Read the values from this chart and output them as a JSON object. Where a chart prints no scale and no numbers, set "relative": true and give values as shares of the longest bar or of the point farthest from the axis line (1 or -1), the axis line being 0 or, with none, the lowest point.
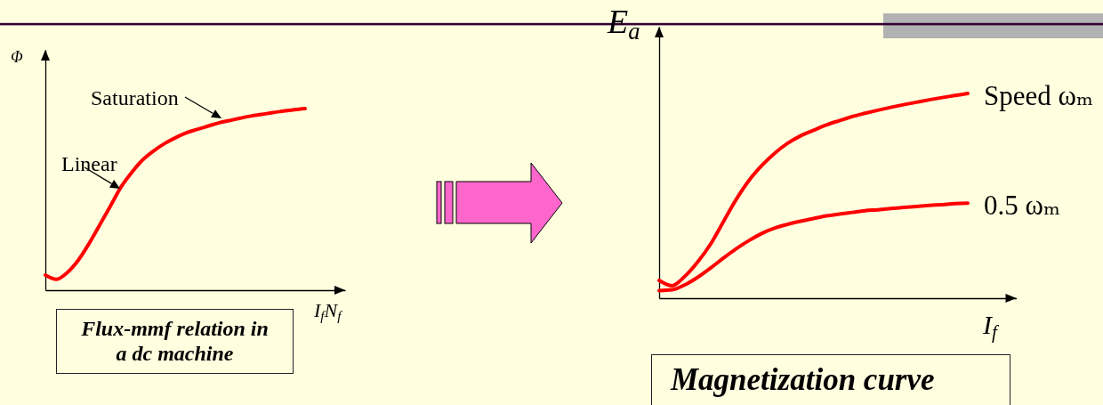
{
  "chart_data": [
    {
      "type": "line",
      "title": "Flux-mmf relation in a dc machine",
      "ylabel": "Φ",
      "xlabel": "I$_{f}$N$_{f}$",
      "annotations": [
        "Saturation",
        "Linear"
      ],
      "relative": true,
      "tick_labels": false,
      "categories": [
        null,
        null,
        null,
        null,
        null,
        null,
        null,
        null,
        null,
        null,
        null,
        null,
        null,
        null,
        null,
        null,
        null,
        null,
        null,
        null,
        null,
        null,
        null,
        null,
        null
      ],
      "series": [
        {
          "color": "#ff0000",
          "values": [
            0.083,
            0.06,
            0.096,
            0.162,
            0.253,
            0.357,
            0.462,
            0.569,
            0.65,
            0.718,
            0.767,
            0.807,
            0.839,
            0.866,
            0.885,
            0.903,
            0.921,
            0.934,
            0.947,
            0.959,
            0.968,
            0.978,
            0.986,
            0.994,
            1
          ]
        }
      ]
    },
    {
      "type": "line",
      "title": "Magnetization curve",
      "ylabel": "E$_{a}$",
      "xlabel": "I$_{f}$",
      "relative": true,
      "tick_labels": false,
      "categories": [
        null,
        null,
        null,
        null,
        null,
        null,
        null,
        null,
        null,
        null,
        null,
        null,
        null,
        null,
        null,
        null,
        null,
        null,
        null,
        null,
        null,
        null,
        null,
        null,
        null
      ],
      "series": [
        {
          "name": "Speed ωₘ",
          "color": "#ff0000",
          "values": [
            0.087,
            0.061,
            0.107,
            0.177,
            0.264,
            0.374,
            0.483,
            0.576,
            0.649,
            0.709,
            0.757,
            0.793,
            0.82,
            0.846,
            0.867,
            0.887,
            0.903,
            0.918,
            0.932,
            0.945,
            0.957,
            0.969,
            0.98,
            0.99,
            1
          ]
        },
        {
          "name": "0.5 ωₘ",
          "color": "#ff0000",
          "values": [
            0.037,
            0.041,
            0.065,
            0.102,
            0.147,
            0.196,
            0.242,
            0.282,
            0.317,
            0.343,
            0.361,
            0.376,
            0.389,
            0.402,
            0.411,
            0.419,
            0.427,
            0.432,
            0.438,
            0.443,
            0.448,
            0.453,
            0.457,
            0.462,
            0.464
          ]
        }
      ]
    }
  ]
}
